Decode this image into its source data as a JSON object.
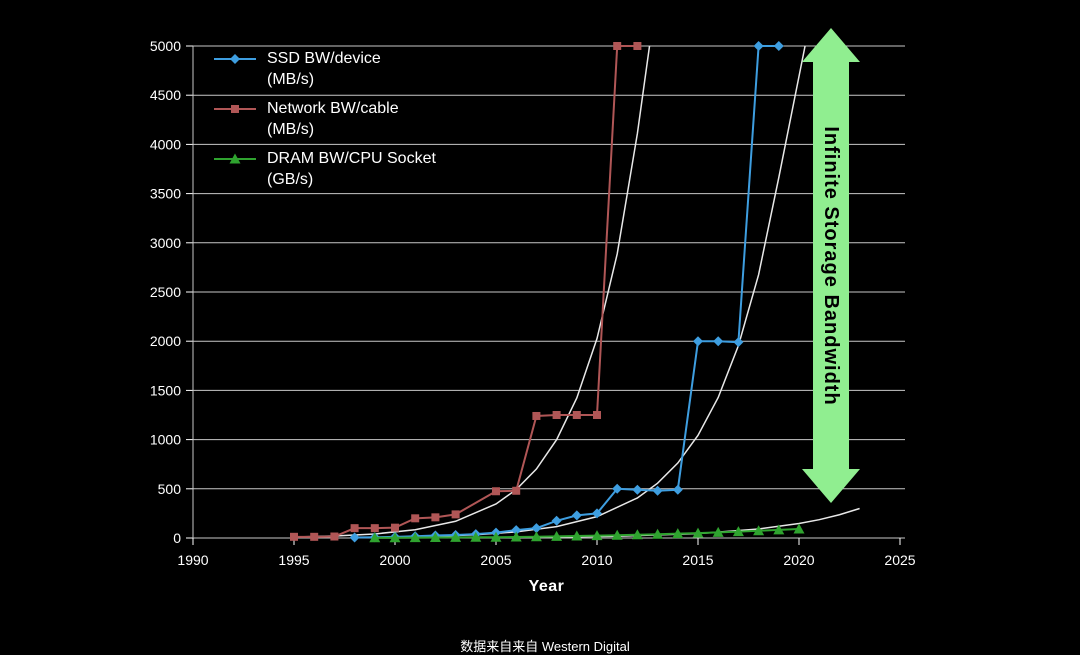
{
  "page": {
    "background": "#000000"
  },
  "caption": {
    "text": "数据来自来自 Western Digital"
  },
  "annotation_arrow": {
    "label": "Infinite Storage Bandwidth",
    "color": "#90EE90",
    "text_color": "#000000"
  },
  "chart_data": {
    "type": "line",
    "title": "",
    "xlabel": "Year",
    "ylabel": "",
    "xlim": [
      1990,
      2025
    ],
    "ylim": [
      0,
      5000
    ],
    "xticks": [
      1990,
      1995,
      2000,
      2005,
      2010,
      2015,
      2020,
      2025
    ],
    "yticks": [
      0,
      500,
      1000,
      1500,
      2000,
      2500,
      3000,
      3500,
      4000,
      4500,
      5000
    ],
    "grid": "horizontal",
    "grid_color": "#c8c8c8",
    "axis_text_color": "#ffffff",
    "legend_position": "top-left",
    "series": [
      {
        "name": "ssd",
        "label": "SSD BW/device",
        "unit": "(MB/s)",
        "color": "#3E9EE0",
        "marker": "diamond",
        "x": [
          1998,
          1999,
          2000,
          2001,
          2002,
          2003,
          2004,
          2005,
          2006,
          2007,
          2008,
          2009,
          2010,
          2011,
          2012,
          2013,
          2014,
          2015,
          2016,
          2017,
          2018,
          2019
        ],
        "y": [
          5,
          8,
          12,
          18,
          25,
          30,
          40,
          55,
          80,
          100,
          175,
          230,
          250,
          500,
          490,
          480,
          490,
          2000,
          2000,
          1990,
          5000,
          5000
        ]
      },
      {
        "name": "network",
        "label": "Network BW/cable",
        "unit": "(MB/s)",
        "color": "#B05656",
        "marker": "square",
        "x": [
          1995,
          1996,
          1997,
          1998,
          1999,
          2000,
          2001,
          2002,
          2003,
          2005,
          2006,
          2007,
          2008,
          2009,
          2010,
          2011,
          2012
        ],
        "y": [
          12,
          12,
          15,
          100,
          100,
          105,
          200,
          210,
          240,
          475,
          480,
          1240,
          1250,
          1250,
          1250,
          5000,
          5000
        ]
      },
      {
        "name": "dram",
        "label": "DRAM BW/CPU Socket",
        "unit": "(GB/s)",
        "color": "#2FA32F",
        "marker": "triangle",
        "x": [
          1999,
          2000,
          2001,
          2002,
          2003,
          2004,
          2005,
          2006,
          2007,
          2008,
          2009,
          2010,
          2011,
          2012,
          2013,
          2014,
          2015,
          2016,
          2017,
          2018,
          2019,
          2020
        ],
        "y": [
          2,
          3,
          4,
          5,
          6,
          7,
          8,
          10,
          13,
          16,
          20,
          24,
          28,
          33,
          38,
          44,
          50,
          57,
          65,
          74,
          83,
          92
        ]
      }
    ],
    "trend_curves": [
      {
        "for": "network",
        "color": "#E8E8E8",
        "points": [
          [
            1995,
            10
          ],
          [
            1997,
            20
          ],
          [
            1999,
            41
          ],
          [
            2001,
            84
          ],
          [
            2003,
            170
          ],
          [
            2005,
            346
          ],
          [
            2006,
            492
          ],
          [
            2007,
            701
          ],
          [
            2008,
            999
          ],
          [
            2009,
            1423
          ],
          [
            2010,
            2027
          ],
          [
            2011,
            2887
          ],
          [
            2012,
            4112
          ],
          [
            2012.6,
            5000
          ]
        ]
      },
      {
        "for": "ssd",
        "color": "#E8E8E8",
        "points": [
          [
            1998,
            5
          ],
          [
            2000,
            9
          ],
          [
            2002,
            18
          ],
          [
            2004,
            33
          ],
          [
            2006,
            62
          ],
          [
            2008,
            116
          ],
          [
            2010,
            217
          ],
          [
            2012,
            407
          ],
          [
            2013,
            557
          ],
          [
            2014,
            762
          ],
          [
            2015,
            1043
          ],
          [
            2016,
            1428
          ],
          [
            2017,
            1955
          ],
          [
            2018,
            2676
          ],
          [
            2019,
            3663
          ],
          [
            2020.3,
            5000
          ]
        ]
      },
      {
        "for": "dram",
        "color": "#E8E8E8",
        "points": [
          [
            1999,
            1
          ],
          [
            2003,
            3
          ],
          [
            2007,
            7
          ],
          [
            2011,
            18
          ],
          [
            2015,
            45
          ],
          [
            2018,
            92
          ],
          [
            2020,
            147
          ],
          [
            2021,
            186
          ],
          [
            2022,
            236
          ],
          [
            2023,
            300
          ]
        ]
      }
    ]
  }
}
